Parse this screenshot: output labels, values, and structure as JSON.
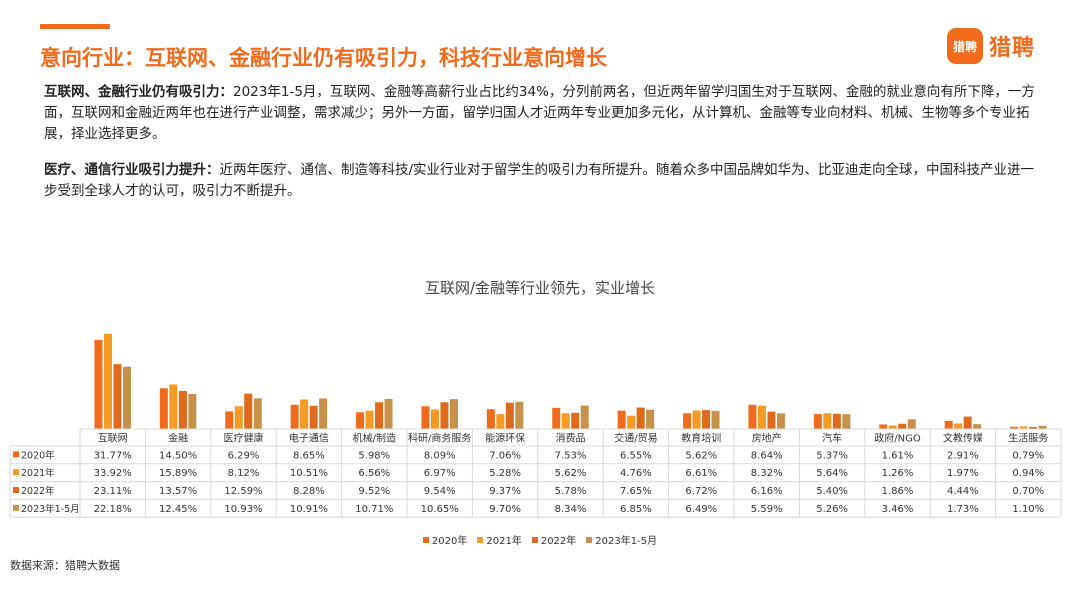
{
  "header": {
    "title": "意向行业：互联网、金融行业仍有吸引力，科技行业意向增长",
    "logo_mark": "猎聘",
    "logo_text": "猎聘"
  },
  "paragraphs": [
    {
      "lead": "互联网、金融行业仍有吸引力：",
      "text": "2023年1-5月，互联网、金融等高薪行业占比约34%，分列前两名，但近两年留学归国生对于互联网、金融的就业意向有所下降，一方面，互联网和金融近两年也在进行产业调整，需求减少；另外一方面，留学归国人才近两年专业更加多元化，从计算机、金融等专业向材料、机械、生物等多个专业拓展，择业选择更多。"
    },
    {
      "lead": "医疗、通信行业吸引力提升：",
      "text": "近两年医疗、通信、制造等科技/实业行业对于留学生的吸引力有所提升。随着众多中国品牌如华为、比亚迪走向全球，中国科技产业进一步受到全球人才的认可，吸引力不断提升。"
    }
  ],
  "chart_data": {
    "type": "bar",
    "title": "互联网/金融等行业领先，实业增长",
    "categories": [
      "互联网",
      "金融",
      "医疗健康",
      "电子通信",
      "机械/制造",
      "科研/商务服务",
      "能源环保",
      "消费品",
      "交通/贸易",
      "教育培训",
      "房地产",
      "汽车",
      "政府/NGO",
      "文教传媒",
      "生活服务"
    ],
    "series": [
      {
        "name": "2020年",
        "color": "#f26b1d",
        "values": [
          31.77,
          14.5,
          6.29,
          8.65,
          5.98,
          8.09,
          7.06,
          7.53,
          6.55,
          5.62,
          8.64,
          5.37,
          1.61,
          2.91,
          0.79
        ],
        "labels": [
          "31.77%",
          "14.50%",
          "6.29%",
          "8.65%",
          "5.98%",
          "8.09%",
          "7.06%",
          "7.53%",
          "6.55%",
          "5.62%",
          "8.64%",
          "5.37%",
          "1.61%",
          "2.91%",
          "0.79%"
        ]
      },
      {
        "name": "2021年",
        "color": "#f59a23",
        "values": [
          33.92,
          15.89,
          8.12,
          10.51,
          6.56,
          6.97,
          5.28,
          5.62,
          4.76,
          6.61,
          8.32,
          5.64,
          1.26,
          1.97,
          0.94
        ],
        "labels": [
          "33.92%",
          "15.89%",
          "8.12%",
          "10.51%",
          "6.56%",
          "6.97%",
          "5.28%",
          "5.62%",
          "4.76%",
          "6.61%",
          "8.32%",
          "5.64%",
          "1.26%",
          "1.97%",
          "0.94%"
        ]
      },
      {
        "name": "2022年",
        "color": "#e06a1b",
        "values": [
          23.11,
          13.57,
          12.59,
          8.28,
          9.52,
          9.54,
          9.37,
          5.78,
          7.65,
          6.72,
          6.16,
          5.4,
          1.86,
          4.44,
          0.7
        ],
        "labels": [
          "23.11%",
          "13.57%",
          "12.59%",
          "8.28%",
          "9.52%",
          "9.54%",
          "9.37%",
          "5.78%",
          "7.65%",
          "6.72%",
          "6.16%",
          "5.40%",
          "1.86%",
          "4.44%",
          "0.70%"
        ]
      },
      {
        "name": "2023年1-5月",
        "color": "#c8914a",
        "values": [
          22.18,
          12.45,
          10.93,
          10.91,
          10.71,
          10.65,
          9.7,
          8.34,
          6.85,
          6.49,
          5.59,
          5.26,
          3.46,
          1.73,
          1.1
        ],
        "labels": [
          "22.18%",
          "12.45%",
          "10.93%",
          "10.91%",
          "10.71%",
          "10.65%",
          "9.70%",
          "8.34%",
          "6.85%",
          "6.49%",
          "5.59%",
          "5.26%",
          "3.46%",
          "1.73%",
          "1.10%"
        ]
      }
    ],
    "ylim": [
      0,
      36
    ],
    "legend_position": "bottom",
    "grid": false
  },
  "source": "数据来源：猎聘大数据"
}
